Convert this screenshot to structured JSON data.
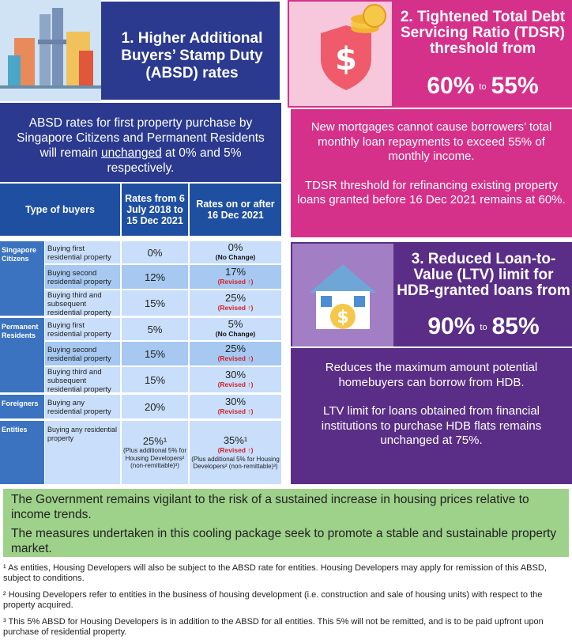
{
  "absd": {
    "title": "1. Higher Additional Buyers’ Stamp Duty (ABSD) rates",
    "desc_before": "ABSD rates for first property purchase by Singapore Citizens and Permanent Residents will remain ",
    "desc_underlined": "unchanged",
    "desc_after": " at 0% and 5% respectively."
  },
  "table": {
    "headers": {
      "type": "Type of buyers",
      "from": "Rates from 6 July 2018 to 15 Dec 2021",
      "on": "Rates on or after 16 Dec 2021"
    },
    "groups": {
      "citizens": "Singapore Citizens",
      "pr": "Permanent Residents",
      "foreigners": "Foreigners",
      "entities": "Entities"
    },
    "rows": [
      {
        "label": "Buying first residential property",
        "old": "0%",
        "new": "0%",
        "note": "(No Change)"
      },
      {
        "label": "Buying second residential property",
        "old": "12%",
        "new": "17%",
        "note": "(Revised ↑)"
      },
      {
        "label": "Buying third and subsequent residential property",
        "old": "15%",
        "new": "25%",
        "note": "(Revised ↑)"
      },
      {
        "label": "Buying first residential property",
        "old": "5%",
        "new": "5%",
        "note": "(No Change)"
      },
      {
        "label": "Buying second residential property",
        "old": "15%",
        "new": "25%",
        "note": "(Revised ↑)"
      },
      {
        "label": "Buying third and subsequent residential property",
        "old": "15%",
        "new": "30%",
        "note": "(Revised ↑)"
      },
      {
        "label": "Buying any residential property",
        "old": "20%",
        "new": "30%",
        "note": "(Revised ↑)"
      },
      {
        "label": "Buying any residential property",
        "old": "25%¹",
        "new": "35%¹",
        "note": "(Revised ↑)",
        "old_sub": "(Plus additional 5% for Housing Developers² (non-remittable)³)",
        "new_sub": "(Plus additional 5% for Housing Developers² (non-remittable)³)"
      }
    ]
  },
  "tdsr": {
    "title": "2. Tightened Total Debt Servicing Ratio (TDSR) threshold from",
    "from": "60%",
    "to_word": "to",
    "to": "55%",
    "p1": "New mortgages cannot cause borrowers’ total monthly loan repayments to exceed 55% of monthly income.",
    "p2": "TDSR threshold for refinancing existing property loans granted before 16 Dec 2021 remains at 60%."
  },
  "ltv": {
    "title": "3. Reduced Loan-to-Value (LTV) limit for HDB-granted loans from",
    "from": "90%",
    "to_word": "to",
    "to": "85%",
    "p1": "Reduces the maximum amount potential homebuyers can borrow from HDB.",
    "p2": "LTV limit for loans obtained from financial institutions to purchase HDB flats remains unchanged at 75%."
  },
  "green": {
    "p1": "The Government remains vigilant to the risk of a sustained increase in housing prices relative to income trends.",
    "p2": "The measures undertaken in this cooling package seek to promote a stable and sustainable property market."
  },
  "notes": {
    "n1": "¹ As entities, Housing Developers will also be subject to the ABSD rate for entities. Housing Developers may apply for remission of this ABSD, subject to conditions.",
    "n2": "² Housing Developers refer to entities in the business of housing development (i.e. construction and sale of housing units) with respect to the property acquired.",
    "n3": "³ This 5% ABSD for Housing Developers is in addition to the ABSD for all entities. This 5% will not be remitted, and is to be paid upfront upon purchase of residential property."
  },
  "icons": [
    "buildings-icon",
    "shield-dollar-icon",
    "house-dollar-icon"
  ]
}
